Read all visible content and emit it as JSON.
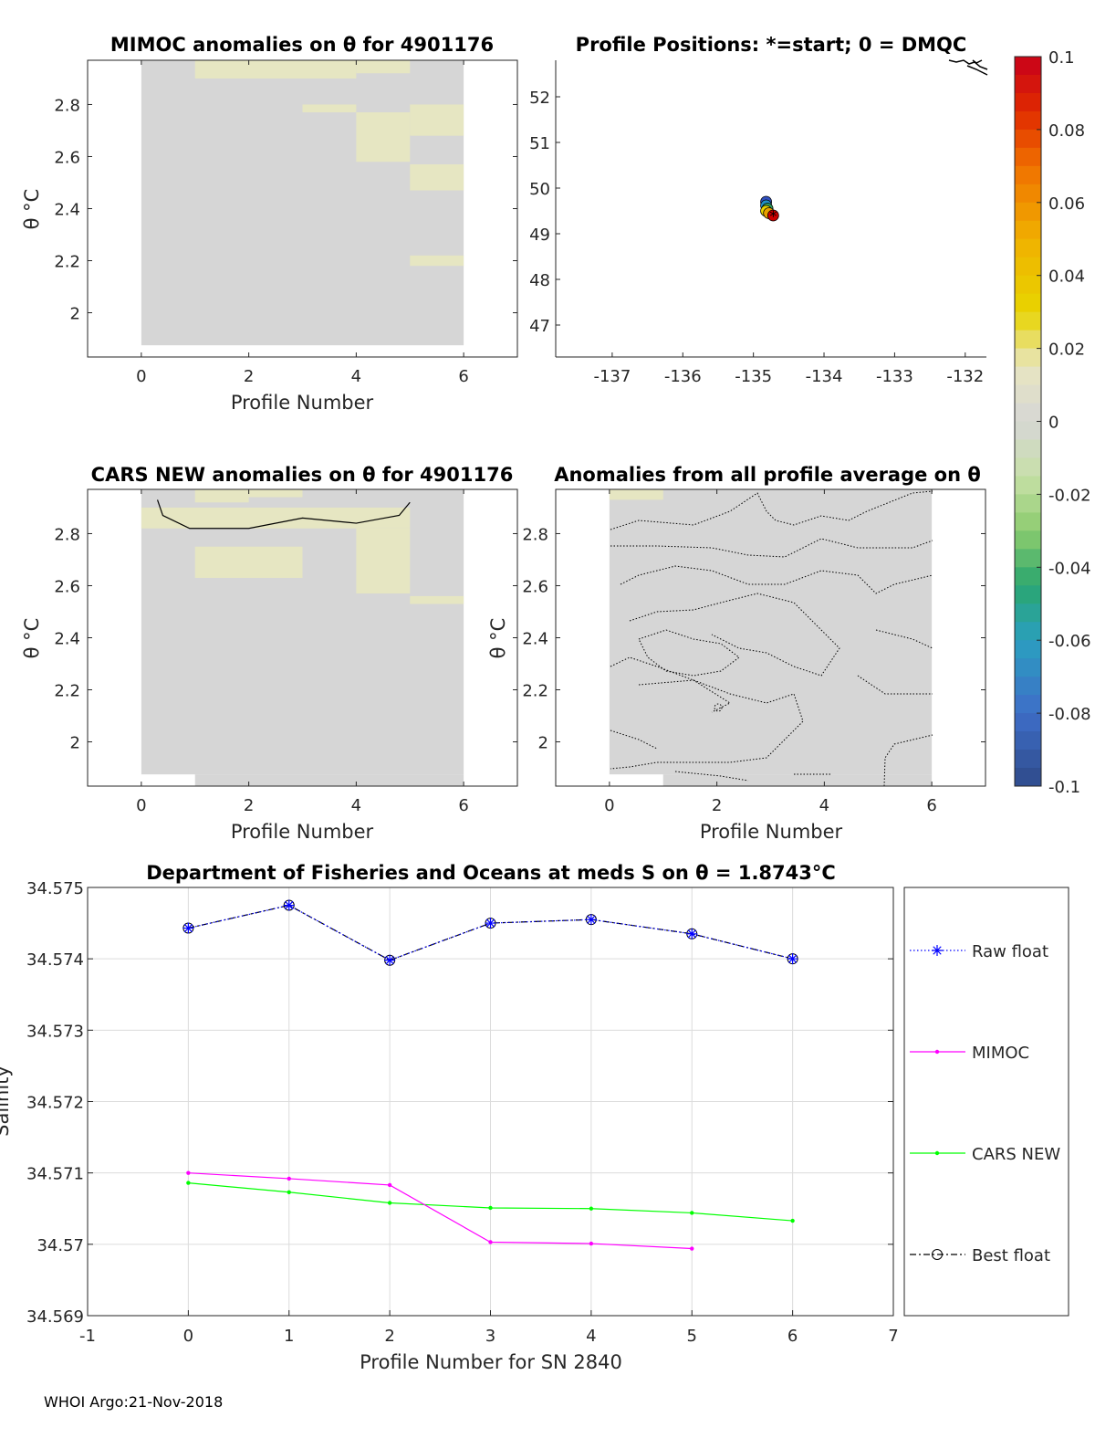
{
  "footer": "WHOI Argo:21-Nov-2018",
  "colors": {
    "raw_float": "#0000ff",
    "mimoc": "#ff00ff",
    "cars_new": "#00ff00",
    "best_float": "#000000",
    "anomaly_bg": "#d6d6d6",
    "anomaly_yellow": "#e6e6c2",
    "position_markers": [
      "#cc0000",
      "#e8a000",
      "#e6d400",
      "#30a060",
      "#2090c8",
      "#3050c0"
    ]
  },
  "chart_data": [
    {
      "id": "mimoc-anomalies",
      "type": "heatmap",
      "title": "MIMOC anomalies on θ  for 4901176",
      "xlabel": "Profile Number",
      "ylabel": "θ °C",
      "xlim": [
        -1,
        7
      ],
      "ylim": [
        1.83,
        2.97
      ],
      "xticks": [
        "0",
        "2",
        "4",
        "6"
      ],
      "yticks": [
        "2",
        "2.2",
        "2.4",
        "2.6",
        "2.8"
      ],
      "grid": false
    },
    {
      "id": "profile-positions",
      "type": "scatter",
      "title": "Profile Positions: *=start; 0 = DMQC",
      "xlim": [
        -137.8,
        -131.7
      ],
      "ylim": [
        46.3,
        52.8
      ],
      "xticks": [
        "-137",
        "-136",
        "-135",
        "-134",
        "-133",
        "-132"
      ],
      "yticks": [
        "47",
        "48",
        "49",
        "50",
        "51",
        "52"
      ],
      "points": [
        {
          "lon": -134.72,
          "lat": 49.4
        },
        {
          "lon": -134.78,
          "lat": 49.45
        },
        {
          "lon": -134.82,
          "lat": 49.5
        },
        {
          "lon": -134.8,
          "lat": 49.55
        },
        {
          "lon": -134.82,
          "lat": 49.62
        },
        {
          "lon": -134.82,
          "lat": 49.7
        }
      ]
    },
    {
      "id": "cars-new-anomalies",
      "type": "heatmap",
      "title": "CARS NEW anomalies on θ for 4901176",
      "xlabel": "Profile Number",
      "ylabel": "θ °C",
      "xlim": [
        -1,
        7
      ],
      "ylim": [
        1.83,
        2.97
      ],
      "xticks": [
        "0",
        "2",
        "4",
        "6"
      ],
      "yticks": [
        "2",
        "2.2",
        "2.4",
        "2.6",
        "2.8"
      ],
      "contour": {
        "x": [
          0.3,
          0.4,
          0.9,
          2,
          3,
          4,
          4.8,
          5
        ],
        "y": [
          2.93,
          2.87,
          2.82,
          2.82,
          2.86,
          2.84,
          2.87,
          2.92
        ]
      }
    },
    {
      "id": "all-profile-anomalies",
      "type": "heatmap",
      "title": "Anomalies from all profile average on θ",
      "xlabel": "Profile Number",
      "ylabel": "θ °C",
      "xlim": [
        -1,
        7
      ],
      "ylim": [
        1.83,
        2.97
      ],
      "xticks": [
        "0",
        "2",
        "4",
        "6"
      ],
      "yticks": [
        "2",
        "2.2",
        "2.4",
        "2.6",
        "2.8"
      ]
    },
    {
      "id": "colorbar",
      "type": "colorbar",
      "range": [
        -0.1,
        0.1
      ],
      "ticks": [
        "0.1",
        "0.08",
        "0.06",
        "0.04",
        "0.02",
        "0",
        "-0.02",
        "-0.04",
        "-0.06",
        "-0.08",
        "-0.1"
      ]
    },
    {
      "id": "salinity-line",
      "type": "line",
      "title": "Department of Fisheries and Oceans at meds S on θ = 1.8743°C",
      "xlabel": "Profile Number for SN 2840",
      "ylabel": "Salinity",
      "xlim": [
        -1,
        7
      ],
      "ylim": [
        34.569,
        34.575
      ],
      "xticks": [
        "-1",
        "0",
        "1",
        "2",
        "3",
        "4",
        "5",
        "6",
        "7"
      ],
      "yticks": [
        "34.569",
        "34.57",
        "34.571",
        "34.572",
        "34.573",
        "34.574",
        "34.575"
      ],
      "grid": true,
      "legend_position": "right",
      "series": [
        {
          "name": "Raw float",
          "x": [
            0,
            1,
            2,
            3,
            4,
            5,
            6
          ],
          "values": [
            34.57443,
            34.57475,
            34.57398,
            34.5745,
            34.57455,
            34.57435,
            34.574
          ]
        },
        {
          "name": "MIMOC",
          "x": [
            0,
            1,
            2,
            3,
            4,
            5
          ],
          "values": [
            34.571,
            34.57092,
            34.57083,
            34.57003,
            34.57001,
            34.56994
          ]
        },
        {
          "name": "CARS NEW",
          "x": [
            0,
            1,
            2,
            3,
            4,
            5,
            6
          ],
          "values": [
            34.57086,
            34.57073,
            34.57058,
            34.57051,
            34.5705,
            34.57044,
            34.57033
          ]
        },
        {
          "name": "Best float",
          "x": [
            0,
            1,
            2,
            3,
            4,
            5,
            6
          ],
          "values": [
            34.57443,
            34.57475,
            34.57398,
            34.5745,
            34.57455,
            34.57435,
            34.574
          ]
        }
      ]
    }
  ]
}
